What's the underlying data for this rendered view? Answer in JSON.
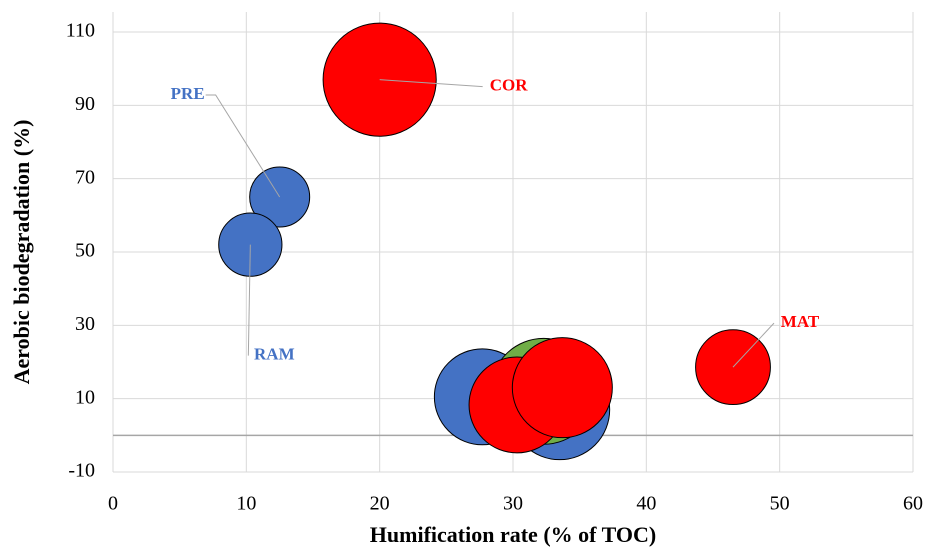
{
  "chart_data": {
    "type": "bubble",
    "x_label": "Humification rate (% of TOC)",
    "y_label": "Aerobic biodegradation (%)",
    "xlim": [
      0,
      60
    ],
    "xticks": [
      0,
      10,
      20,
      30,
      40,
      50,
      60
    ],
    "ylim": [
      -10,
      110
    ],
    "yticks": [
      -10,
      10,
      30,
      50,
      70,
      90,
      110
    ],
    "grid": true,
    "series": [
      {
        "color": "#4472c4",
        "x": [
          12.5,
          10.3,
          27.7,
          33.5
        ],
        "values": [
          65,
          52,
          10.5,
          7
        ],
        "sizes": [
          9,
          10,
          23,
          25
        ]
      },
      {
        "color": "#70ad47",
        "x": [
          32.3
        ],
        "values": [
          12
        ],
        "sizes": [
          28
        ]
      },
      {
        "color": "#ff0000",
        "x": [
          20,
          46.5,
          30.3,
          33.7
        ],
        "values": [
          97,
          18.6,
          8.3,
          13
        ],
        "sizes": [
          32,
          14,
          23,
          25
        ]
      }
    ],
    "annotations": [
      {
        "text": "PRE",
        "series": 0,
        "index": 0
      },
      {
        "text": "RAM",
        "series": 0,
        "index": 1
      },
      {
        "text": "COR",
        "series": 2,
        "index": 0
      },
      {
        "text": "MAT",
        "series": 2,
        "index": 1
      }
    ]
  }
}
